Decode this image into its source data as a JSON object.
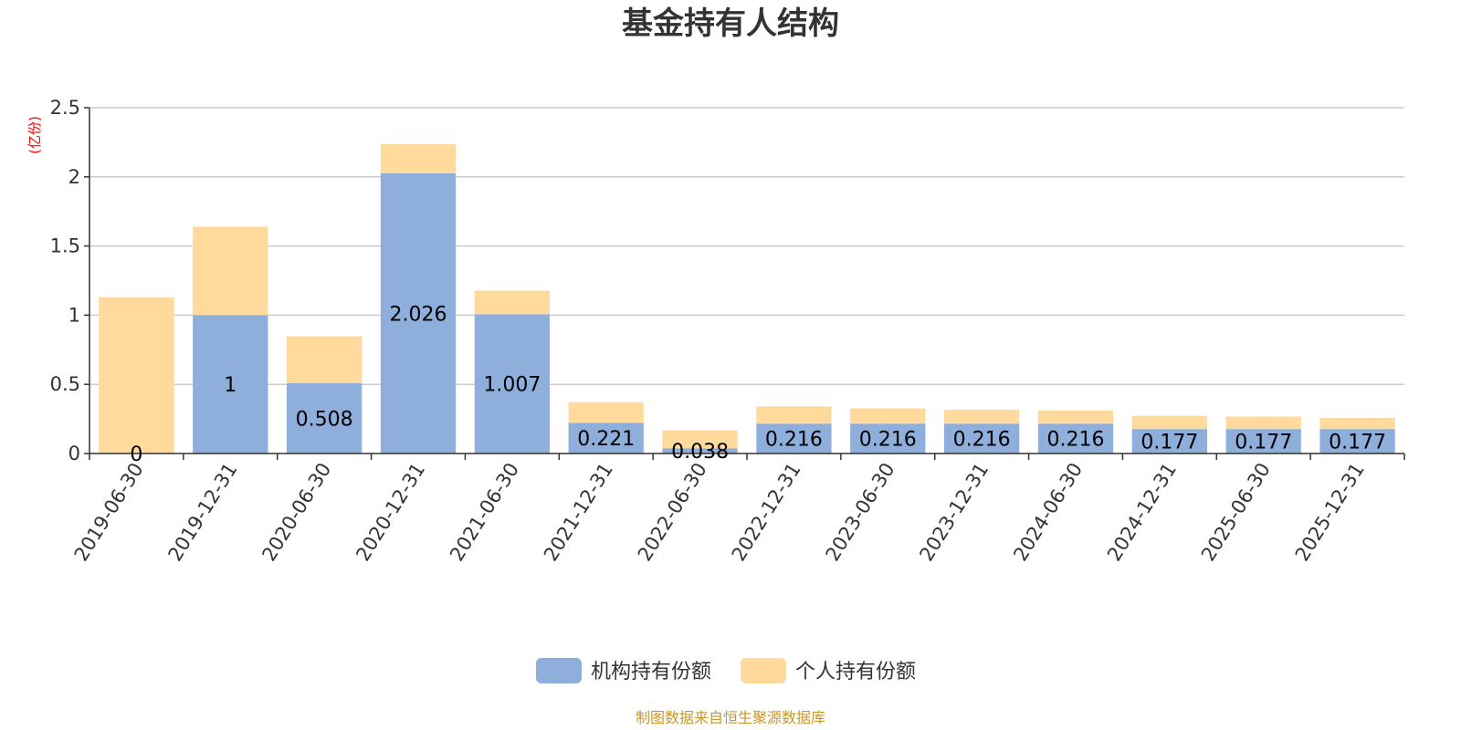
{
  "chart_data": {
    "type": "bar",
    "stacked": true,
    "title": "基金持有人结构",
    "unit_label": "(亿份)",
    "ylim": [
      0,
      2.5
    ],
    "yticks": [
      "0",
      "0.5",
      "1",
      "1.5",
      "2",
      "2.5"
    ],
    "grid": true,
    "legend_position": "bottom",
    "categories": [
      "2019-06-30",
      "2019-12-31",
      "2020-06-30",
      "2020-12-31",
      "2021-06-30",
      "2021-12-31",
      "2022-06-30",
      "2022-12-31",
      "2023-06-30",
      "2023-12-31",
      "2024-06-30",
      "2024-12-31",
      "2025-06-30",
      "2025-12-31"
    ],
    "series": [
      {
        "name": "机构持有份额",
        "color": "#8eaedb",
        "values": [
          0,
          1,
          0.508,
          2.026,
          1.007,
          0.221,
          0.038,
          0.216,
          0.216,
          0.216,
          0.216,
          0.177,
          0.177,
          0.177
        ],
        "labels": [
          "0",
          "1",
          "0.508",
          "2.026",
          "1.007",
          "0.221",
          "0.038",
          "0.216",
          "0.216",
          "0.216",
          "0.216",
          "0.177",
          "0.177",
          "0.177"
        ]
      },
      {
        "name": "个人持有份额",
        "color": "#ffda9c",
        "values": [
          1.13,
          0.64,
          0.34,
          0.21,
          0.17,
          0.15,
          0.13,
          0.125,
          0.11,
          0.1,
          0.095,
          0.095,
          0.09,
          0.08
        ]
      }
    ],
    "source": "制图数据来自恒生聚源数据库"
  }
}
